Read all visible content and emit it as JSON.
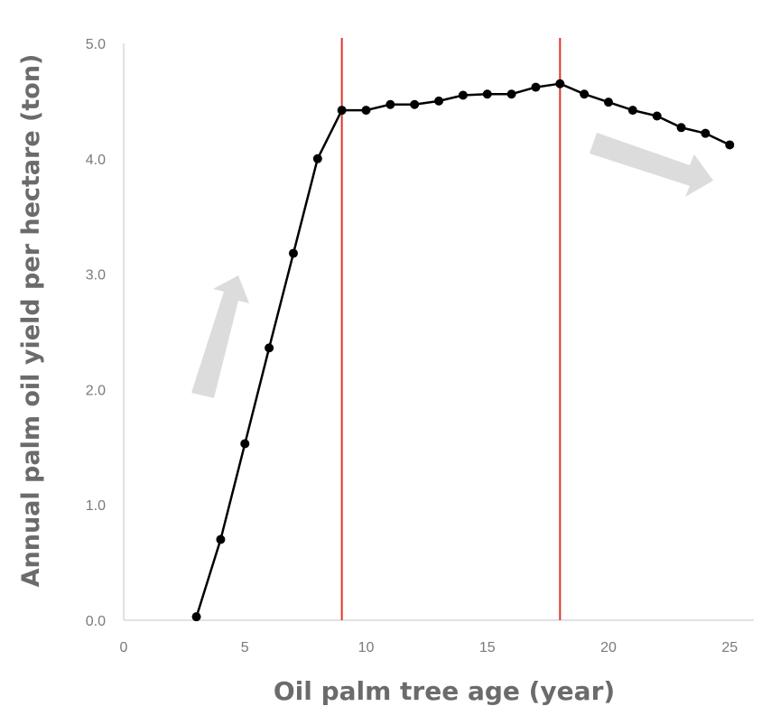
{
  "chart_data": {
    "type": "line",
    "title": "",
    "xlabel": "Oil palm tree age (year)",
    "ylabel": "Annual palm oil yield per hectare (ton)",
    "xlim": [
      0,
      26
    ],
    "ylim": [
      0,
      5
    ],
    "x_ticks": [
      0,
      5,
      10,
      15,
      20,
      25
    ],
    "x_tick_labels": [
      "0",
      "5",
      "10",
      "15",
      "20",
      "25"
    ],
    "y_ticks": [
      0,
      1,
      2,
      3,
      4,
      5
    ],
    "y_tick_labels": [
      "0.0",
      "1.0",
      "2.0",
      "3.0",
      "4.0",
      "5.0"
    ],
    "grid": false,
    "line_color": "#000000",
    "series": [
      {
        "x": [
          3,
          4,
          5,
          6,
          7,
          8,
          9,
          10,
          11,
          12,
          13,
          14,
          15,
          16,
          17,
          18,
          19,
          20,
          21,
          22,
          23,
          24,
          25
        ],
        "values": [
          0.03,
          0.7,
          1.53,
          2.36,
          3.18,
          4.0,
          4.42,
          4.42,
          4.47,
          4.47,
          4.5,
          4.55,
          4.56,
          4.56,
          4.62,
          4.65,
          4.56,
          4.49,
          4.42,
          4.37,
          4.27,
          4.22,
          4.12
        ]
      }
    ],
    "vertical_lines": [
      {
        "x": 9,
        "color": "#e0352b"
      },
      {
        "x": 18,
        "color": "#e0352b"
      }
    ],
    "trend_arrows": [
      {
        "direction": "up",
        "color": "#dcdcdc"
      },
      {
        "direction": "down",
        "color": "#dcdcdc"
      }
    ]
  }
}
